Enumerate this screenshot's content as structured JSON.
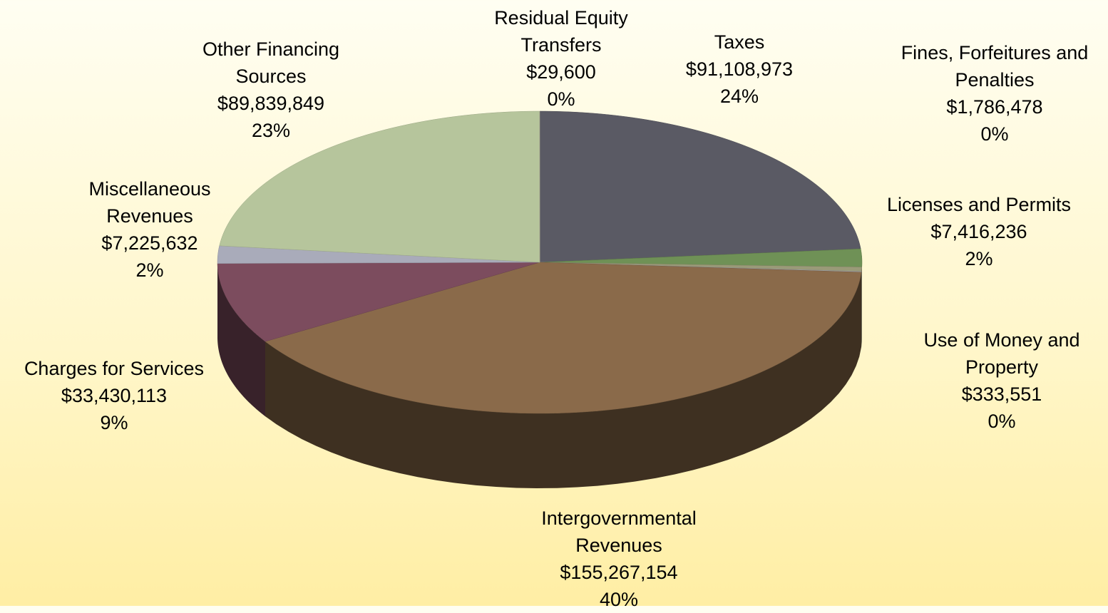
{
  "chart_data": {
    "type": "pie3d",
    "categories": [
      "Taxes",
      "Licenses and Permits",
      "Fines, Forfeitures and Penalties",
      "Use of Money and Property",
      "Intergovernmental Revenues",
      "Charges for Services",
      "Miscellaneous Revenues",
      "Other Financing Sources",
      "Residual Equity Transfers"
    ],
    "values": [
      91108973,
      7416236,
      1786478,
      333551,
      155267154,
      33430113,
      7225632,
      89839849,
      29600
    ],
    "value_labels": [
      "$91,108,973",
      "$7,416,236",
      "$1,786,478",
      "$333,551",
      "$155,267,154",
      "$33,430,113",
      "$7,225,632",
      "$89,839,849",
      "$29,600"
    ],
    "percent_labels": [
      "24%",
      "2%",
      "0%",
      "0%",
      "40%",
      "9%",
      "2%",
      "23%",
      "0%"
    ],
    "colors": [
      "#5a5a64",
      "#6f9156",
      "#9a9a78",
      "#a7a7a7",
      "#8a6a4a",
      "#7c4c5e",
      "#a9abba",
      "#b6c59c",
      "#c8c8a8"
    ]
  }
}
